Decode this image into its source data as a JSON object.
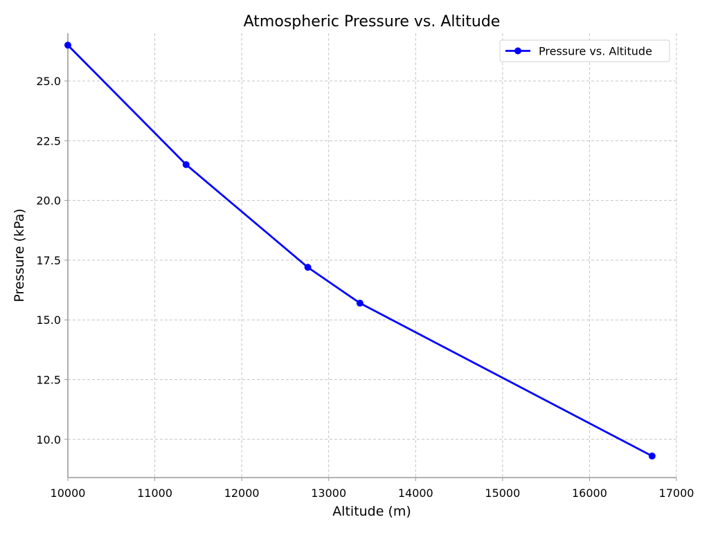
{
  "chart_data": {
    "type": "line",
    "title": "Atmospheric Pressure vs. Altitude",
    "xlabel": "Altitude (m)",
    "ylabel": "Pressure (kPa)",
    "xlim": [
      10000,
      17000
    ],
    "ylim": [
      8.4,
      27.0
    ],
    "xticks": [
      10000,
      11000,
      12000,
      13000,
      14000,
      15000,
      16000,
      17000
    ],
    "xtick_labels": [
      "10000",
      "11000",
      "12000",
      "13000",
      "14000",
      "15000",
      "16000",
      "17000"
    ],
    "yticks": [
      10.0,
      12.5,
      15.0,
      17.5,
      20.0,
      22.5,
      25.0
    ],
    "ytick_labels": [
      "10.0",
      "12.5",
      "15.0",
      "17.5",
      "20.0",
      "22.5",
      "25.0"
    ],
    "grid": true,
    "legend_position": "top-right",
    "series": [
      {
        "name": "Pressure vs. Altitude",
        "color": "#0000ff",
        "x": [
          10000,
          11360,
          12760,
          13360,
          16720
        ],
        "y": [
          26.5,
          21.5,
          17.2,
          15.7,
          9.3
        ]
      }
    ]
  }
}
